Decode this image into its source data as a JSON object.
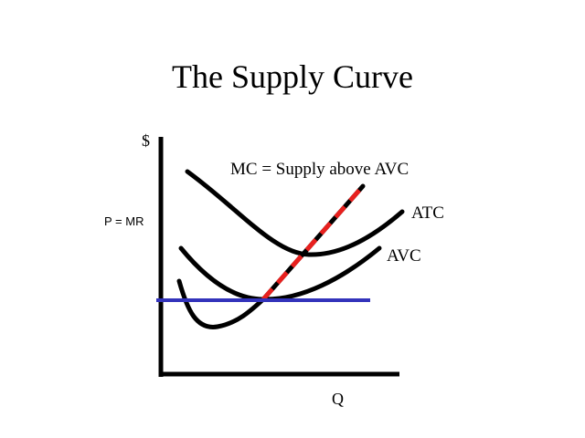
{
  "slide": {
    "title": "The Supply Curve"
  },
  "diagram": {
    "y_axis_label": "$",
    "x_axis_label": "Q",
    "price_label": "P = MR",
    "mc_label": "MC = Supply above AVC",
    "atc_label": "ATC",
    "avc_label": "AVC"
  },
  "colors": {
    "curve": "#000000",
    "price_line": "#3333bb",
    "supply_dash": "#e8201e",
    "background": "#ffffff"
  }
}
